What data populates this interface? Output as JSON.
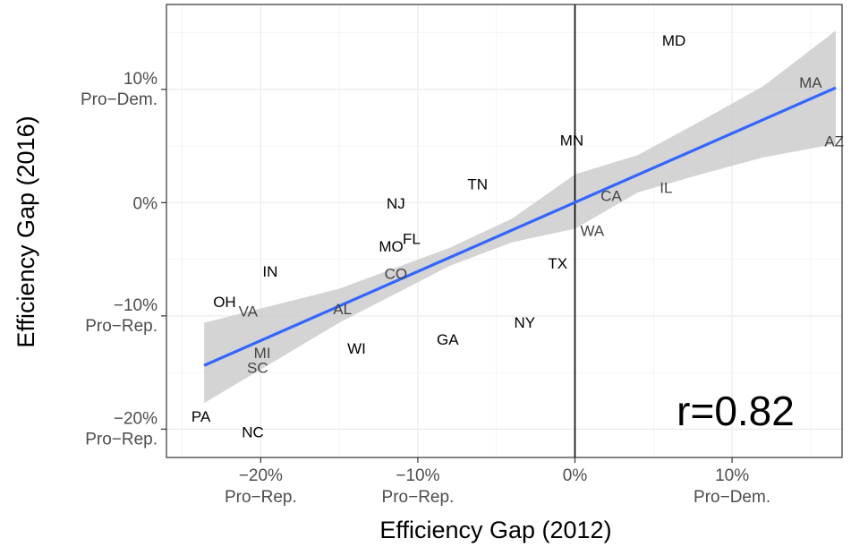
{
  "chart_data": {
    "type": "scatter",
    "xlabel": "Efficiency Gap (2012)",
    "ylabel": "Efficiency Gap (2016)",
    "xlim": [
      -26,
      17
    ],
    "ylim": [
      -22.5,
      17.5
    ],
    "grid": true,
    "x_ticks": [
      {
        "value": -20,
        "line1": "−20%",
        "line2": "Pro−Rep."
      },
      {
        "value": -10,
        "line1": "−10%",
        "line2": "Pro−Rep."
      },
      {
        "value": 0,
        "line1": "0%",
        "line2": ""
      },
      {
        "value": 10,
        "line1": "10%",
        "line2": "Pro−Dem."
      }
    ],
    "y_ticks": [
      {
        "value": 10,
        "line1": "10%",
        "line2": "Pro−Dem."
      },
      {
        "value": 0,
        "line1": "0%",
        "line2": ""
      },
      {
        "value": -10,
        "line1": "−10%",
        "line2": "Pro−Rep."
      },
      {
        "value": -20,
        "line1": "−20%",
        "line2": "Pro−Rep."
      }
    ],
    "points": [
      {
        "label": "MD",
        "x": 6.3,
        "y": 14.3
      },
      {
        "label": "MA",
        "x": 15.0,
        "y": 10.6
      },
      {
        "label": "AZ",
        "x": 16.5,
        "y": 5.4
      },
      {
        "label": "MN",
        "x": -0.2,
        "y": 5.5
      },
      {
        "label": "IL",
        "x": 5.8,
        "y": 1.3
      },
      {
        "label": "CA",
        "x": 2.3,
        "y": 0.6
      },
      {
        "label": "TN",
        "x": -6.2,
        "y": 1.6
      },
      {
        "label": "NJ",
        "x": -11.4,
        "y": -0.1
      },
      {
        "label": "FL",
        "x": -10.4,
        "y": -3.2
      },
      {
        "label": "MO",
        "x": -11.7,
        "y": -3.9
      },
      {
        "label": "WA",
        "x": 1.1,
        "y": -2.5
      },
      {
        "label": "TX",
        "x": -1.1,
        "y": -5.4
      },
      {
        "label": "CO",
        "x": -11.4,
        "y": -6.3
      },
      {
        "label": "IN",
        "x": -19.4,
        "y": -6.1
      },
      {
        "label": "OH",
        "x": -22.3,
        "y": -8.8
      },
      {
        "label": "VA",
        "x": -20.8,
        "y": -9.6
      },
      {
        "label": "AL",
        "x": -14.8,
        "y": -9.4
      },
      {
        "label": "NY",
        "x": -3.2,
        "y": -10.6
      },
      {
        "label": "GA",
        "x": -8.1,
        "y": -12.1
      },
      {
        "label": "WI",
        "x": -13.9,
        "y": -12.9
      },
      {
        "label": "MI",
        "x": -19.9,
        "y": -13.3
      },
      {
        "label": "SC",
        "x": -20.2,
        "y": -14.6
      },
      {
        "label": "PA",
        "x": -23.8,
        "y": -18.9
      },
      {
        "label": "NC",
        "x": -20.5,
        "y": -20.3
      }
    ],
    "fit_line": {
      "slope": 0.61,
      "intercept": 0.02,
      "x_start": -23.6,
      "x_end": 16.6
    },
    "confidence_band": [
      {
        "x": -23.6,
        "lower": -17.7,
        "upper": -10.6
      },
      {
        "x": -15.0,
        "lower": -10.6,
        "upper": -7.6
      },
      {
        "x": -8.0,
        "lower": -5.6,
        "upper": -4.0
      },
      {
        "x": -4.0,
        "lower": -3.5,
        "upper": -1.4
      },
      {
        "x": 0.0,
        "lower": -2.3,
        "upper": 2.5
      },
      {
        "x": 4.0,
        "lower": 0.9,
        "upper": 4.2
      },
      {
        "x": 8.0,
        "lower": 2.5,
        "upper": 7.2
      },
      {
        "x": 12.0,
        "lower": 4.0,
        "upper": 10.3
      },
      {
        "x": 16.6,
        "lower": 5.2,
        "upper": 15.2
      }
    ],
    "annotation": "r=0.82",
    "colors": {
      "fit_line": "#3366ff",
      "band": "#cccccc",
      "grid": "#ebebeb",
      "zero_line": "#000000"
    }
  }
}
